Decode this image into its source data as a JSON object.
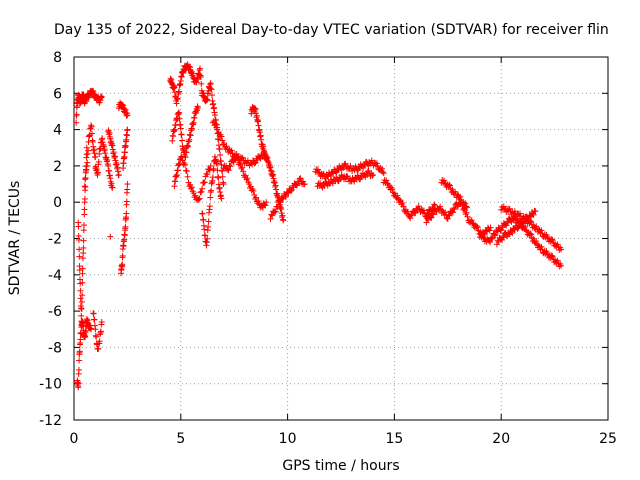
{
  "chart_data": {
    "type": "scatter",
    "title": "Day 135 of 2022, Sidereal Day-to-day VTEC variation (SDTVAR) for receiver flin",
    "xlabel": "GPS time / hours",
    "ylabel": "SDTVAR / TECUs",
    "xlim": [
      0,
      25
    ],
    "ylim": [
      -12,
      8
    ],
    "xticks": [
      0,
      5,
      10,
      15,
      20,
      25
    ],
    "yticks": [
      -12,
      -10,
      -8,
      -6,
      -4,
      -2,
      0,
      2,
      4,
      6,
      8
    ],
    "grid": true,
    "marker": "+",
    "color": "#ff0000",
    "series": [
      {
        "name": "SDTVAR",
        "segments": [
          {
            "x": [
              0.1,
              0.15,
              0.2,
              0.25,
              0.3,
              0.35,
              0.4,
              0.45,
              0.5,
              0.6,
              0.7,
              0.8,
              0.9,
              1.0,
              1.1,
              1.2,
              1.3
            ],
            "y": [
              4.5,
              5.5,
              5.8,
              5.6,
              5.5,
              5.7,
              5.9,
              5.8,
              5.5,
              5.8,
              5.9,
              6.1,
              6.0,
              5.8,
              5.7,
              5.6,
              5.8
            ]
          },
          {
            "x": [
              0.15,
              0.2,
              0.25,
              0.3,
              0.35,
              0.4,
              0.45,
              0.5,
              0.55,
              0.6,
              0.7,
              0.8
            ],
            "y": [
              -9.8,
              -10.2,
              -8.5,
              -7.5,
              -6.8,
              -6.5,
              -7.2,
              -7.5,
              -7.0,
              -6.5,
              -6.8,
              -7.0
            ]
          },
          {
            "x": [
              0.2,
              0.25,
              0.3,
              0.35,
              0.4,
              0.45,
              0.5,
              0.55,
              0.6
            ],
            "y": [
              -1.0,
              -3.0,
              -5.0,
              -6.5,
              -4.0,
              -2.0,
              0.0,
              1.5,
              3.0
            ]
          },
          {
            "x": [
              0.5,
              0.6,
              0.7,
              0.8,
              0.9,
              1.0
            ],
            "y": [
              1.0,
              2.0,
              3.5,
              4.3,
              3.0,
              2.5
            ]
          },
          {
            "x": [
              0.9,
              1.0,
              1.1,
              1.2,
              1.3
            ],
            "y": [
              -6.0,
              -7.0,
              -8.2,
              -7.6,
              -6.6
            ]
          },
          {
            "x": [
              1.0,
              1.1,
              1.2,
              1.3,
              1.4,
              1.5,
              1.6,
              1.7,
              1.8
            ],
            "y": [
              2.0,
              1.5,
              2.8,
              3.5,
              3.0,
              2.5,
              2.0,
              1.2,
              0.8
            ]
          },
          {
            "x": [
              1.6,
              1.7,
              1.8,
              1.9,
              2.0,
              2.1
            ],
            "y": [
              4.0,
              3.5,
              3.0,
              2.5,
              2.0,
              1.5
            ]
          },
          {
            "x": [
              1.7
            ],
            "y": [
              -1.9
            ]
          },
          {
            "x": [
              2.1,
              2.2,
              2.3,
              2.4,
              2.5
            ],
            "y": [
              5.3,
              5.4,
              5.2,
              5.0,
              4.8
            ]
          },
          {
            "x": [
              2.2,
              2.25,
              2.3,
              2.35,
              2.4,
              2.45,
              2.5
            ],
            "y": [
              -3.8,
              -3.5,
              -2.5,
              -2.0,
              -1.5,
              -0.5,
              1.0
            ]
          },
          {
            "x": [
              2.3,
              2.35,
              2.4,
              2.45,
              2.5
            ],
            "y": [
              2.0,
              2.5,
              3.0,
              3.5,
              4.0
            ]
          },
          {
            "x": [
              4.5,
              4.6,
              4.7,
              4.8,
              4.9,
              5.0,
              5.1,
              5.2,
              5.3,
              5.4,
              5.5,
              5.6,
              5.7,
              5.8,
              5.9,
              6.0
            ],
            "y": [
              6.8,
              6.5,
              6.2,
              5.5,
              6.0,
              6.8,
              7.2,
              7.4,
              7.5,
              7.4,
              7.2,
              6.8,
              6.6,
              6.9,
              7.3,
              6.0
            ]
          },
          {
            "x": [
              4.6,
              4.7,
              4.8,
              4.9,
              5.0,
              5.1,
              5.2,
              5.3,
              5.4,
              5.5,
              5.6,
              5.7,
              5.8
            ],
            "y": [
              3.5,
              4.0,
              4.5,
              5.0,
              4.0,
              3.0,
              2.5,
              3.0,
              3.5,
              4.0,
              4.5,
              5.0,
              5.2
            ]
          },
          {
            "x": [
              4.7,
              4.8,
              4.9,
              5.0,
              5.2,
              5.4,
              5.6,
              5.8,
              6.0,
              6.2,
              6.4
            ],
            "y": [
              1.0,
              1.5,
              2.0,
              2.5,
              2.0,
              1.0,
              0.5,
              0.0,
              0.8,
              1.5,
              2.0
            ]
          },
          {
            "x": [
              6.0,
              6.1,
              6.2,
              6.3,
              6.4,
              6.5,
              6.6,
              6.7,
              6.8,
              6.9,
              7.0
            ],
            "y": [
              6.0,
              5.8,
              5.5,
              6.2,
              6.5,
              5.5,
              4.8,
              4.0,
              3.0,
              2.0,
              1.0
            ]
          },
          {
            "x": [
              6.0,
              6.1,
              6.2,
              6.3,
              6.4,
              6.5,
              6.6,
              6.7,
              6.8,
              6.9
            ],
            "y": [
              -0.5,
              -1.5,
              -2.5,
              -1.0,
              0.5,
              1.5,
              2.5,
              2.0,
              0.8,
              0.2
            ]
          },
          {
            "x": [
              6.5,
              6.7,
              6.9,
              7.1,
              7.3,
              7.5,
              7.7,
              7.9,
              8.1,
              8.3,
              8.5,
              8.7,
              8.9,
              9.0
            ],
            "y": [
              4.5,
              4.0,
              3.5,
              3.0,
              2.8,
              2.6,
              2.5,
              2.3,
              2.2,
              2.1,
              2.3,
              2.5,
              2.6,
              2.5
            ]
          },
          {
            "x": [
              7.0,
              7.2,
              7.4,
              7.6,
              7.8,
              8.0,
              8.2,
              8.4,
              8.6,
              8.8,
              9.0
            ],
            "y": [
              2.0,
              1.8,
              2.2,
              2.5,
              2.0,
              1.5,
              1.0,
              0.5,
              0.0,
              -0.3,
              0.0
            ]
          },
          {
            "x": [
              8.3,
              8.4,
              8.5,
              8.6,
              8.7,
              8.8,
              8.9,
              9.0
            ],
            "y": [
              5.0,
              5.2,
              5.0,
              4.5,
              3.8,
              3.2,
              2.8,
              2.4
            ]
          },
          {
            "x": [
              9.0,
              9.1,
              9.2,
              9.3,
              9.4,
              9.5,
              9.6,
              9.7,
              9.8
            ],
            "y": [
              2.5,
              2.2,
              1.8,
              1.5,
              1.0,
              0.5,
              0.0,
              -0.5,
              -1.0
            ]
          },
          {
            "x": [
              9.2,
              9.4,
              9.6,
              9.8,
              10.0,
              10.2,
              10.4,
              10.6,
              10.8
            ],
            "y": [
              -0.8,
              -0.5,
              0.0,
              0.3,
              0.5,
              0.8,
              1.0,
              1.2,
              1.0
            ]
          },
          {
            "x": [
              11.3,
              11.5,
              11.7,
              11.9,
              12.1,
              12.3,
              12.5,
              12.7,
              12.9,
              13.1,
              13.3,
              13.5,
              13.7,
              13.9,
              14.1,
              14.3,
              14.5
            ],
            "y": [
              1.8,
              1.6,
              1.4,
              1.5,
              1.6,
              1.8,
              1.9,
              2.0,
              1.9,
              1.8,
              1.9,
              2.0,
              2.1,
              2.2,
              2.1,
              1.9,
              1.6
            ]
          },
          {
            "x": [
              11.4,
              11.6,
              11.8,
              12.0,
              12.2,
              12.4,
              12.6,
              12.8,
              13.0,
              13.2,
              13.4,
              13.6,
              13.8,
              14.0
            ],
            "y": [
              1.0,
              0.9,
              1.0,
              1.1,
              1.2,
              1.3,
              1.4,
              1.3,
              1.2,
              1.3,
              1.4,
              1.5,
              1.6,
              1.5
            ]
          },
          {
            "x": [
              14.5,
              14.7,
              14.9,
              15.1,
              15.3,
              15.5,
              15.7,
              15.9,
              16.1,
              16.3,
              16.5,
              16.7,
              16.9
            ],
            "y": [
              1.2,
              1.0,
              0.6,
              0.3,
              0.0,
              -0.4,
              -0.8,
              -0.6,
              -0.3,
              -0.5,
              -0.7,
              -0.4,
              -0.2
            ]
          },
          {
            "x": [
              16.5,
              16.7,
              16.9,
              17.1,
              17.3,
              17.5,
              17.7,
              17.9,
              18.1,
              18.3,
              18.5,
              18.7,
              18.9,
              19.1,
              19.3,
              19.5
            ],
            "y": [
              -1.0,
              -0.8,
              -0.5,
              -0.3,
              -0.6,
              -0.8,
              -0.5,
              -0.2,
              0.0,
              -0.5,
              -1.0,
              -1.2,
              -1.5,
              -1.8,
              -1.6,
              -1.4
            ]
          },
          {
            "x": [
              17.2,
              17.4,
              17.6,
              17.8,
              18.0,
              18.2,
              18.4
            ],
            "y": [
              1.2,
              1.0,
              0.8,
              0.5,
              0.3,
              0.0,
              -0.3
            ]
          },
          {
            "x": [
              19.0,
              19.2,
              19.4,
              19.6,
              19.8,
              20.0,
              20.2,
              20.4,
              20.6,
              20.8,
              21.0,
              21.2,
              21.4,
              21.6,
              21.8,
              22.0,
              22.2,
              22.4,
              22.6,
              22.8
            ],
            "y": [
              -1.8,
              -2.0,
              -2.2,
              -1.9,
              -1.6,
              -1.4,
              -1.2,
              -1.0,
              -0.9,
              -1.1,
              -1.3,
              -1.6,
              -1.9,
              -2.2,
              -2.5,
              -2.7,
              -2.9,
              -3.1,
              -3.3,
              -3.5
            ]
          },
          {
            "x": [
              20.0,
              20.2,
              20.4,
              20.6,
              20.8,
              21.0,
              21.2,
              21.4,
              21.6,
              21.8,
              22.0,
              22.2,
              22.4,
              22.6,
              22.8
            ],
            "y": [
              -0.3,
              -0.4,
              -0.5,
              -0.6,
              -0.7,
              -0.8,
              -1.0,
              -1.2,
              -1.4,
              -1.6,
              -1.8,
              -2.0,
              -2.2,
              -2.4,
              -2.6
            ]
          },
          {
            "x": [
              19.8,
              20.0,
              20.2,
              20.4,
              20.6,
              20.8,
              21.0,
              21.2,
              21.4,
              21.6
            ],
            "y": [
              -2.2,
              -2.0,
              -1.8,
              -1.7,
              -1.5,
              -1.3,
              -1.1,
              -0.9,
              -0.7,
              -0.5
            ]
          }
        ]
      }
    ]
  }
}
